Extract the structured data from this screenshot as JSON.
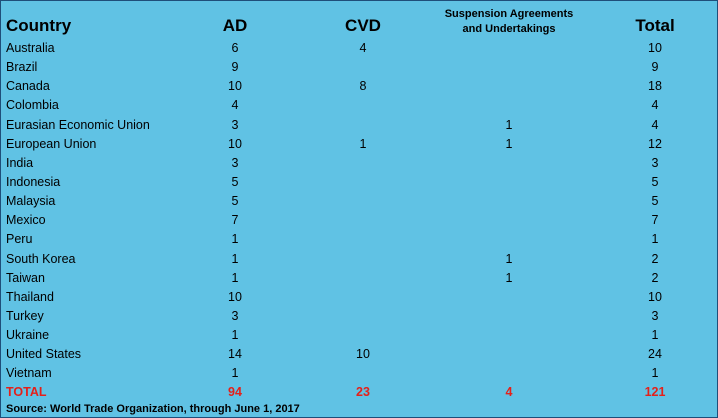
{
  "headers": {
    "country": "Country",
    "ad": "AD",
    "cvd": "CVD",
    "suspension_line1": "Suspension Agreements",
    "suspension_line2": "and Undertakings",
    "total": "Total"
  },
  "rows": [
    {
      "country": "Australia",
      "ad": "6",
      "cvd": "4",
      "susp": "",
      "total": "10"
    },
    {
      "country": "Brazil",
      "ad": "9",
      "cvd": "",
      "susp": "",
      "total": "9"
    },
    {
      "country": "Canada",
      "ad": "10",
      "cvd": "8",
      "susp": "",
      "total": "18"
    },
    {
      "country": "Colombia",
      "ad": "4",
      "cvd": "",
      "susp": "",
      "total": "4"
    },
    {
      "country": "Eurasian Economic Union",
      "ad": "3",
      "cvd": "",
      "susp": "1",
      "total": "4"
    },
    {
      "country": "European Union",
      "ad": "10",
      "cvd": "1",
      "susp": "1",
      "total": "12"
    },
    {
      "country": "India",
      "ad": "3",
      "cvd": "",
      "susp": "",
      "total": "3"
    },
    {
      "country": "Indonesia",
      "ad": "5",
      "cvd": "",
      "susp": "",
      "total": "5"
    },
    {
      "country": "Malaysia",
      "ad": "5",
      "cvd": "",
      "susp": "",
      "total": "5"
    },
    {
      "country": "Mexico",
      "ad": "7",
      "cvd": "",
      "susp": "",
      "total": "7"
    },
    {
      "country": "Peru",
      "ad": "1",
      "cvd": "",
      "susp": "",
      "total": "1"
    },
    {
      "country": "South Korea",
      "ad": "1",
      "cvd": "",
      "susp": "1",
      "total": "2"
    },
    {
      "country": "Taiwan",
      "ad": "1",
      "cvd": "",
      "susp": "1",
      "total": "2"
    },
    {
      "country": "Thailand",
      "ad": "10",
      "cvd": "",
      "susp": "",
      "total": "10"
    },
    {
      "country": "Turkey",
      "ad": "3",
      "cvd": "",
      "susp": "",
      "total": "3"
    },
    {
      "country": "Ukraine",
      "ad": "1",
      "cvd": "",
      "susp": "",
      "total": "1"
    },
    {
      "country": "United States",
      "ad": "14",
      "cvd": "10",
      "susp": "",
      "total": "24"
    },
    {
      "country": "Vietnam",
      "ad": "1",
      "cvd": "",
      "susp": "",
      "total": "1"
    }
  ],
  "totals": {
    "label": "TOTAL",
    "ad": "94",
    "cvd": "23",
    "susp": "4",
    "total": "121"
  },
  "source": "Source: World Trade Organization, through June 1, 2017",
  "colors": {
    "background": "#60c2e4",
    "total_text": "#e4201a",
    "border": "#1f4e79"
  }
}
